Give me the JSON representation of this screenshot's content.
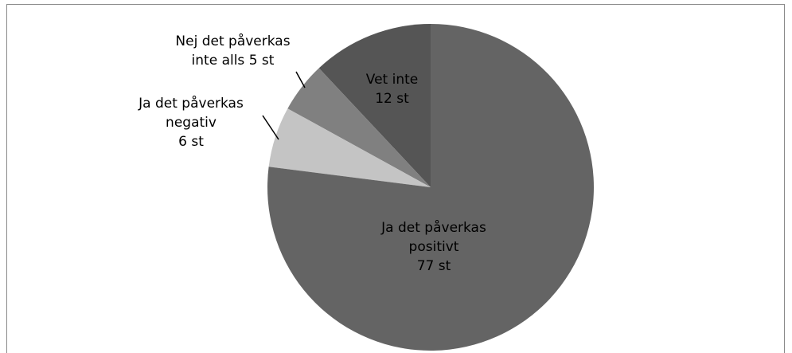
{
  "chart_data": {
    "type": "pie",
    "categories": [
      "Ja det påverkas positivt",
      "Ja det påverkas negativ",
      "Nej det påverkas inte alls",
      "Vet inte"
    ],
    "values": [
      77,
      6,
      5,
      12
    ],
    "value_labels": [
      "77 st",
      "6 st",
      "5 st",
      "12 st"
    ],
    "colors": [
      "#646464",
      "#c4c4c4",
      "#808080",
      "#555555"
    ]
  }
}
